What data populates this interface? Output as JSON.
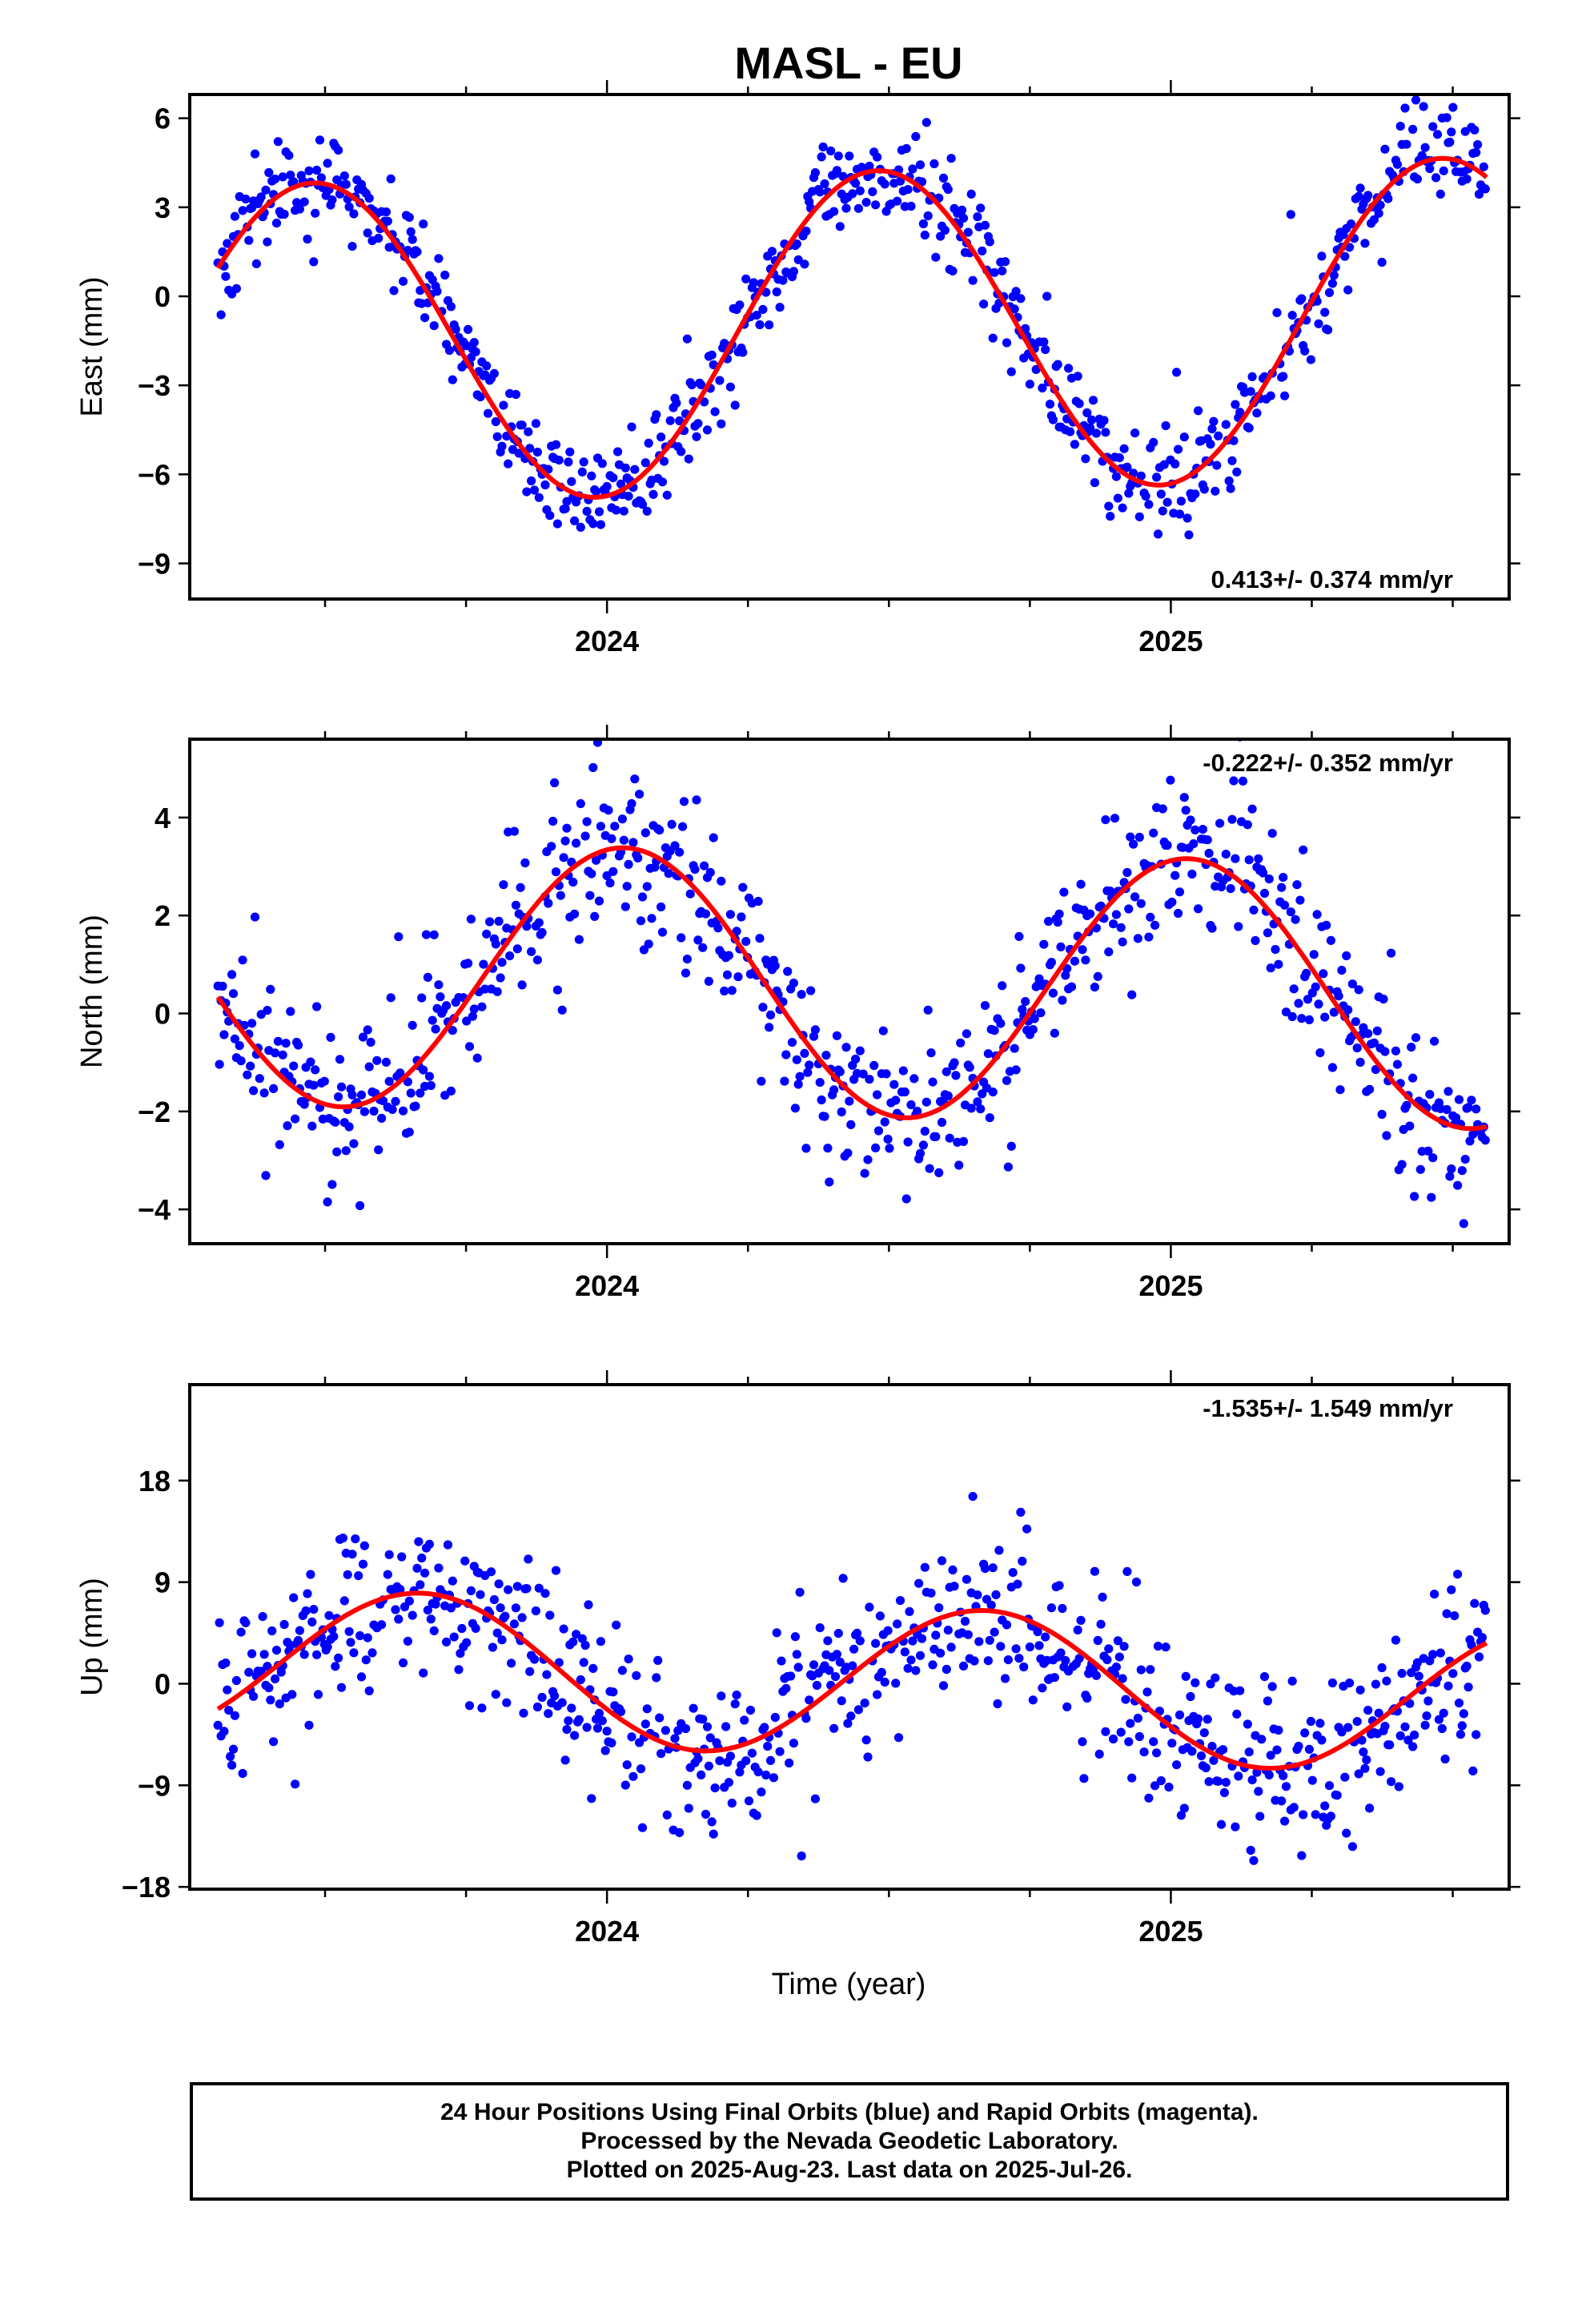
{
  "chart_data": {
    "type": "scatter",
    "title": "MASL - EU",
    "xlabel": "Time (year)",
    "x_ticks_major": [
      2024,
      2025
    ],
    "x_range": [
      2023.26,
      2025.6
    ],
    "colors": {
      "points": "#0000ff",
      "fit": "#ff0000"
    },
    "panels": [
      {
        "id": "east",
        "ylabel": "East (mm)",
        "ylim": [
          -10.2,
          6.8
        ],
        "yticks": [
          -9,
          -6,
          -3,
          0,
          3,
          6
        ],
        "rate_label": "0.413+/- 0.374 mm/yr",
        "rate_position": "bottom-right",
        "trend": {
          "offset": -1.2,
          "rate": 0.413,
          "ref_year": 2024.4
        },
        "seasonal": {
          "amplitude": 5.4,
          "phase_year": 2023.48
        },
        "noise": 0.9,
        "series": [
          {
            "name": "Final Orbits",
            "color": "#0000ff",
            "x_start": 2023.31,
            "x_end": 2025.56
          }
        ]
      },
      {
        "id": "north",
        "ylabel": "North (mm)",
        "ylim": [
          -4.7,
          5.6
        ],
        "yticks": [
          -4,
          -2,
          0,
          2,
          4
        ],
        "rate_label": "-0.222+/- 0.352 mm/yr",
        "rate_position": "top-right",
        "trend": {
          "offset": 0.6,
          "rate": -0.222,
          "ref_year": 2024.4
        },
        "seasonal": {
          "amplitude": 2.7,
          "phase_year": 2024.03
        },
        "noise": 0.85,
        "series": [
          {
            "name": "Final Orbits",
            "color": "#0000ff",
            "x_start": 2023.31,
            "x_end": 2025.56
          }
        ]
      },
      {
        "id": "up",
        "ylabel": "Up (mm)",
        "ylim": [
          -18.2,
          26.5
        ],
        "yticks": [
          -18,
          -9,
          0,
          9,
          18
        ],
        "rate_label": "-1.535+/- 1.549 mm/yr",
        "rate_position": "top-right",
        "trend": {
          "offset": 0.3,
          "rate": -1.535,
          "ref_year": 2024.4
        },
        "seasonal": {
          "amplitude": 6.6,
          "phase_year": 2023.67
        },
        "noise": 3.6,
        "series": [
          {
            "name": "Final Orbits",
            "color": "#0000ff",
            "x_start": 2023.31,
            "x_end": 2025.56
          }
        ]
      }
    ],
    "footer": [
      "24 Hour Positions Using Final Orbits (blue) and Rapid Orbits (magenta).",
      "Processed by the Nevada Geodetic Laboratory.",
      "Plotted on 2025-Aug-23. Last data on 2025-Jul-26."
    ]
  }
}
